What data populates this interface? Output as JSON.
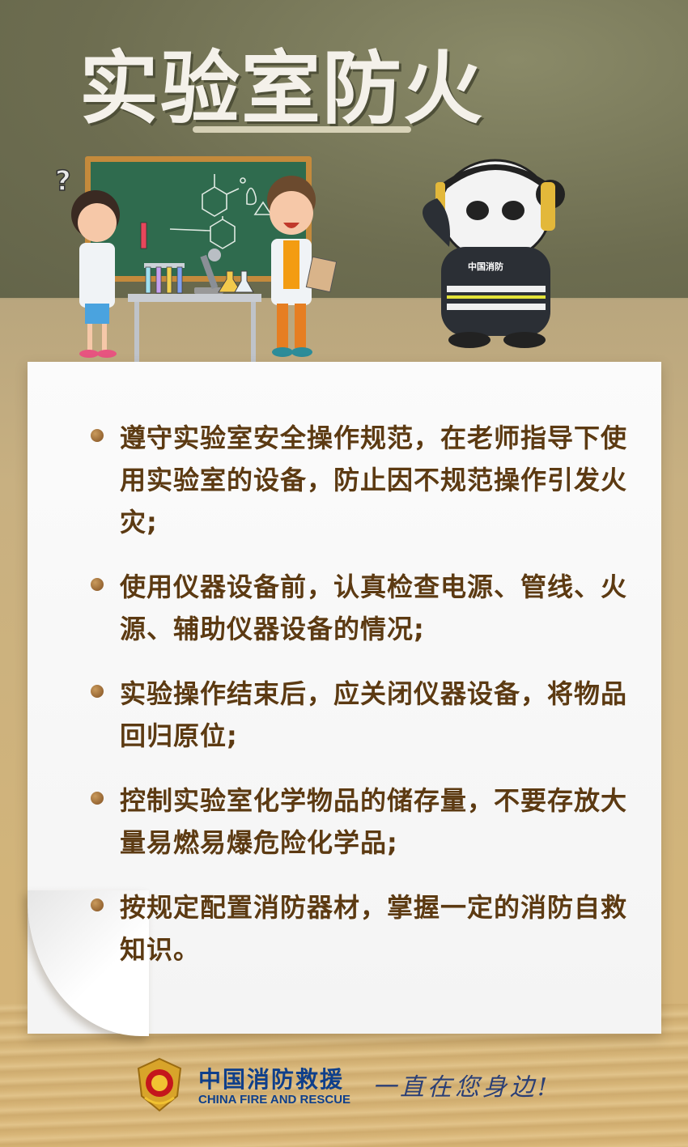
{
  "title": "实验室防火",
  "items": [
    "遵守实验室安全操作规范，在老师指导下使用实验室的设备，防止因不规范操作引发火灾;",
    "使用仪器设备前，认真检查电源、管线、火源、辅助仪器设备的情况;",
    "实验操作结束后，应关闭仪器设备，将物品回归原位;",
    "控制实验室化学物品的储存量，不要存放大量易燃易爆危险化学品;",
    "按规定配置消防器材，掌握一定的消防自救知识。"
  ],
  "mascot_badge": "中国消防",
  "footer": {
    "org_cn": "中国消防救援",
    "org_en": "CHINA FIRE AND RESCUE",
    "slogan": "一直在您身边!"
  },
  "colors": {
    "text": "#5c3a12",
    "brand_blue": "#0f3f8a",
    "chalkboard": "#2f6b4e"
  },
  "icons": [
    "question-mark-icon",
    "chalkboard",
    "microscope",
    "test-tubes",
    "flask",
    "panda-mascot",
    "fire-rescue-emblem"
  ]
}
